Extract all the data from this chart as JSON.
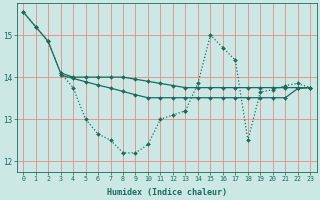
{
  "xlabel": "Humidex (Indice chaleur)",
  "bg_color": "#cce8e4",
  "grid_color": "#ff9999",
  "line_color": "#1a6b5e",
  "xlim": [
    -0.5,
    23.5
  ],
  "ylim": [
    11.75,
    15.75
  ],
  "yticks": [
    12,
    13,
    14,
    15
  ],
  "xticks": [
    0,
    1,
    2,
    3,
    4,
    5,
    6,
    7,
    8,
    9,
    10,
    11,
    12,
    13,
    14,
    15,
    16,
    17,
    18,
    19,
    20,
    21,
    22,
    23
  ],
  "series_down_x": [
    0,
    1,
    2,
    3,
    4,
    5,
    6,
    7,
    8,
    9,
    10,
    11,
    12,
    13
  ],
  "series_down_y": [
    15.55,
    15.2,
    14.85,
    14.1,
    13.75,
    13.0,
    12.65,
    12.5,
    12.2,
    12.2,
    12.4,
    13.0,
    13.1,
    13.2
  ],
  "series_up_x": [
    13,
    14,
    15,
    16,
    17,
    18,
    19,
    20,
    21,
    22,
    23
  ],
  "series_up_y": [
    13.2,
    13.85,
    15.0,
    14.7,
    14.4,
    12.5,
    13.65,
    13.7,
    13.8,
    13.85,
    13.75
  ],
  "series_flat_x": [
    3,
    4,
    5,
    6,
    7,
    8,
    9,
    10,
    11,
    12,
    13,
    14,
    15,
    16,
    17,
    18,
    19,
    20,
    21,
    22,
    23
  ],
  "series_flat_y": [
    14.05,
    13.97,
    13.89,
    13.81,
    13.74,
    13.66,
    13.58,
    13.51,
    13.51,
    13.51,
    13.51,
    13.51,
    13.51,
    13.51,
    13.51,
    13.51,
    13.51,
    13.51,
    13.51,
    13.73,
    13.75
  ],
  "series_diag_x": [
    0,
    1,
    2,
    3,
    4,
    5,
    6,
    7,
    8,
    9,
    10,
    11,
    12,
    13,
    14,
    15,
    16,
    17,
    18,
    19,
    20,
    21,
    22,
    23
  ],
  "series_diag_y": [
    15.55,
    15.2,
    14.85,
    14.1,
    14.0,
    14.0,
    14.0,
    14.0,
    14.0,
    13.95,
    13.9,
    13.85,
    13.8,
    13.75,
    13.75,
    13.75,
    13.75,
    13.75,
    13.75,
    13.75,
    13.75,
    13.75,
    13.75,
    13.75
  ]
}
